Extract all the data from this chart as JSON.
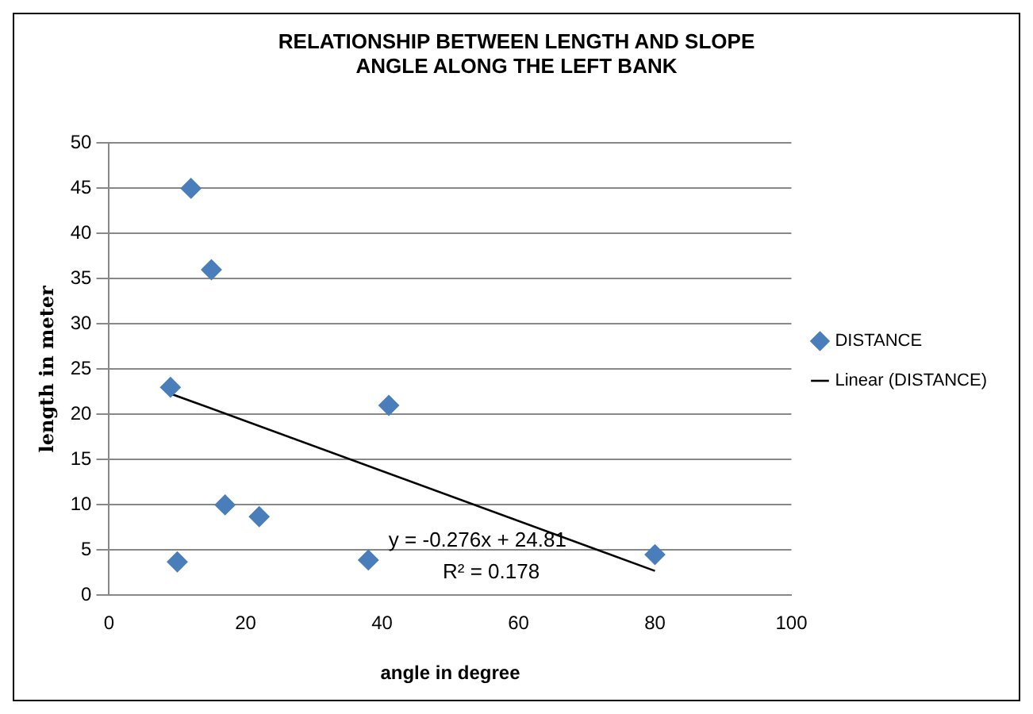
{
  "chart_data": {
    "type": "scatter",
    "title": "RELATIONSHIP BETWEEN LENGTH AND SLOPE ANGLE ALONG THE LEFT BANK",
    "xlabel": "angle in degree",
    "ylabel": "length in meter",
    "series": [
      {
        "name": "DISTANCE",
        "color": "#4a7ebb",
        "marker": "diamond",
        "x": [
          9,
          12,
          15,
          10,
          17,
          22,
          38,
          41,
          80
        ],
        "values": [
          23,
          45,
          36,
          3.7,
          10,
          8.7,
          3.9,
          21,
          4.5
        ]
      },
      {
        "name": "Linear (DISTANCE)",
        "type": "line",
        "color": "#000000",
        "marker": "none",
        "line_style": "solid",
        "x": [
          9,
          80
        ],
        "values": [
          22.3,
          2.7
        ]
      }
    ],
    "annotations": [
      "y = -0.276x + 24.81",
      "R² = 0.178"
    ],
    "xlim": [
      0,
      100
    ],
    "xticks": [
      0,
      20,
      40,
      60,
      80,
      100
    ],
    "ylim": [
      0,
      50
    ],
    "yticks": [
      0,
      5,
      10,
      15,
      20,
      25,
      30,
      35,
      40,
      45,
      50
    ],
    "grid": "y",
    "legend": "right"
  }
}
